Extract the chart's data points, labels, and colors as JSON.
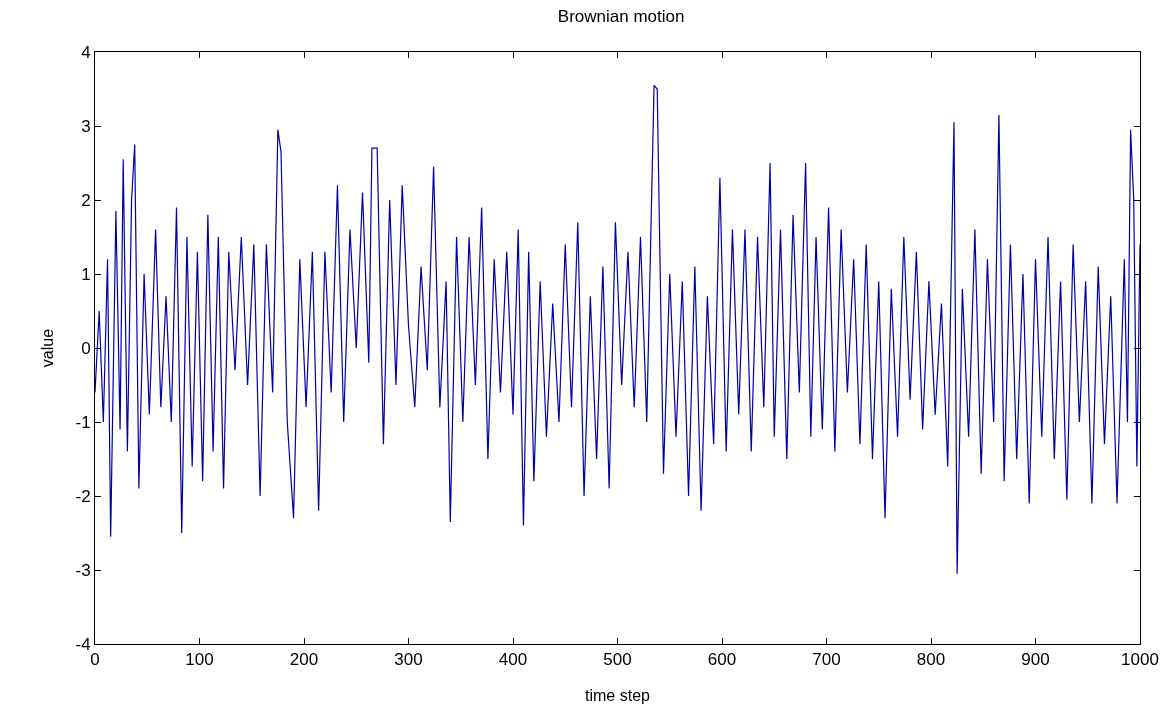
{
  "chart_data": {
    "type": "line",
    "title": "Brownian motion",
    "xlabel": "time step",
    "ylabel": "value",
    "x": [
      0,
      4,
      8,
      12,
      15,
      20,
      24,
      27,
      31,
      35,
      38,
      42,
      47,
      52,
      58,
      63,
      68,
      73,
      78,
      83,
      88,
      93,
      98,
      103,
      108,
      113,
      118,
      123,
      128,
      134,
      140,
      146,
      152,
      158,
      164,
      170,
      175,
      178,
      184,
      190,
      196,
      202,
      208,
      214,
      220,
      226,
      232,
      238,
      244,
      250,
      256,
      262,
      265,
      270,
      276,
      282,
      288,
      294,
      300,
      306,
      312,
      318,
      324,
      330,
      336,
      340,
      346,
      352,
      358,
      364,
      370,
      376,
      382,
      388,
      394,
      400,
      405,
      410,
      415,
      420,
      426,
      432,
      438,
      444,
      450,
      456,
      462,
      468,
      474,
      480,
      486,
      492,
      498,
      504,
      510,
      516,
      522,
      528,
      535,
      538,
      544,
      550,
      556,
      562,
      568,
      574,
      580,
      586,
      592,
      598,
      604,
      610,
      616,
      622,
      628,
      634,
      640,
      646,
      650,
      656,
      662,
      668,
      674,
      680,
      685,
      690,
      696,
      702,
      708,
      714,
      720,
      726,
      732,
      738,
      744,
      750,
      756,
      762,
      768,
      774,
      780,
      786,
      792,
      798,
      804,
      810,
      816,
      822,
      825,
      830,
      836,
      842,
      848,
      854,
      860,
      865,
      870,
      876,
      882,
      888,
      894,
      900,
      906,
      912,
      918,
      924,
      930,
      936,
      942,
      948,
      954,
      960,
      966,
      972,
      978,
      985,
      988,
      991,
      994,
      997,
      1000
    ],
    "series": [
      {
        "color": "#0000a8",
        "values": [
          -0.6,
          0.5,
          -1.0,
          1.2,
          -2.55,
          1.85,
          -1.1,
          2.55,
          -1.4,
          2.0,
          2.75,
          -1.9,
          1.0,
          -0.9,
          1.6,
          -0.8,
          0.7,
          -1.0,
          1.9,
          -2.5,
          1.5,
          -1.6,
          1.3,
          -1.8,
          1.8,
          -1.4,
          1.5,
          -1.9,
          1.3,
          -0.3,
          1.5,
          -0.5,
          1.4,
          -2.0,
          1.4,
          -0.6,
          2.95,
          2.65,
          -1.0,
          -2.3,
          1.2,
          -0.8,
          1.3,
          -2.2,
          1.3,
          -0.6,
          2.2,
          -1.0,
          1.6,
          0.0,
          2.1,
          -0.2,
          2.7,
          2.7,
          -1.3,
          2.0,
          -0.5,
          2.2,
          0.3,
          -0.8,
          1.1,
          -0.3,
          2.45,
          -0.8,
          0.9,
          -2.35,
          1.5,
          -1.0,
          1.5,
          -0.5,
          1.9,
          -1.5,
          1.2,
          -0.6,
          1.3,
          -0.9,
          1.6,
          -2.4,
          1.3,
          -1.8,
          0.9,
          -1.2,
          0.6,
          -1.0,
          1.4,
          -0.8,
          1.7,
          -2.0,
          0.7,
          -1.5,
          1.1,
          -1.9,
          1.7,
          -0.5,
          1.3,
          -0.8,
          1.5,
          -1.0,
          3.55,
          3.5,
          -1.7,
          1.0,
          -1.2,
          0.9,
          -2.0,
          1.1,
          -2.2,
          0.7,
          -1.3,
          2.3,
          -1.4,
          1.6,
          -0.9,
          1.6,
          -1.4,
          1.5,
          -0.8,
          2.5,
          -1.2,
          1.6,
          -1.5,
          1.8,
          -0.6,
          2.5,
          -1.2,
          1.5,
          -1.1,
          1.9,
          -1.4,
          1.6,
          -0.6,
          1.2,
          -1.3,
          1.4,
          -1.5,
          0.9,
          -2.3,
          0.8,
          -1.2,
          1.5,
          -0.7,
          1.3,
          -1.1,
          0.9,
          -0.9,
          0.6,
          -1.6,
          3.05,
          -3.05,
          0.8,
          -1.2,
          1.6,
          -1.7,
          1.2,
          -1.0,
          3.15,
          -1.8,
          1.4,
          -1.5,
          1.0,
          -2.1,
          1.2,
          -1.2,
          1.5,
          -1.5,
          0.9,
          -2.05,
          1.4,
          -1.0,
          0.9,
          -2.1,
          1.1,
          -1.3,
          0.7,
          -2.1,
          1.2,
          -1.0,
          2.95,
          2.0,
          -1.6,
          1.4
        ]
      }
    ],
    "xlim": [
      0,
      1000
    ],
    "xticks": [
      0,
      100,
      200,
      300,
      400,
      500,
      600,
      700,
      800,
      900,
      1000
    ],
    "ylim": [
      -4,
      4
    ],
    "yticks": [
      -4,
      -3,
      -2,
      -1,
      0,
      1,
      2,
      3,
      4
    ],
    "grid": false,
    "marker": "none",
    "line_style": "solid"
  }
}
